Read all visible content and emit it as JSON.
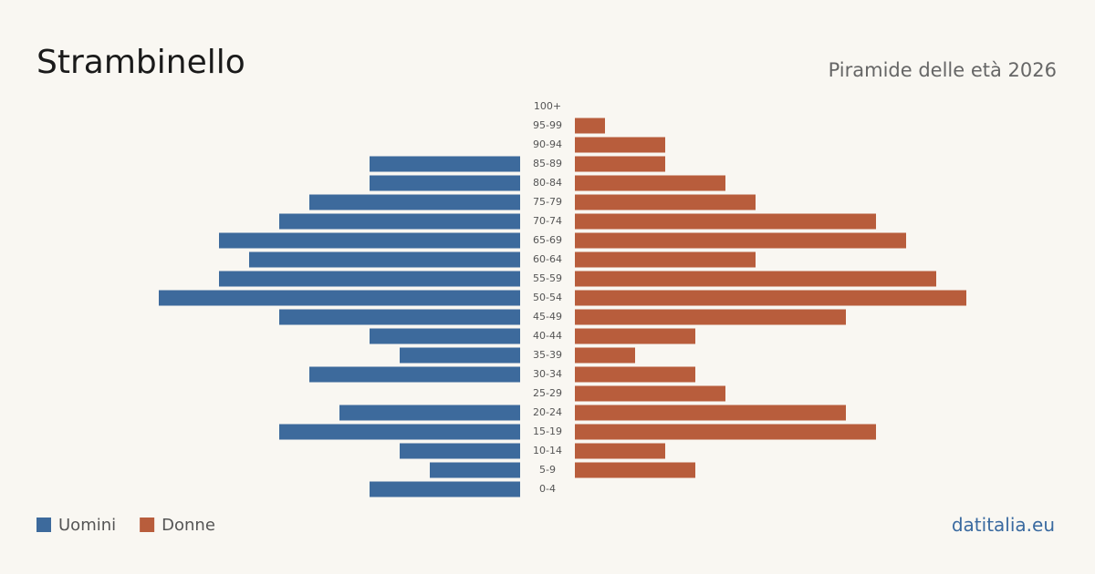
{
  "chart_data": {
    "type": "pyramid",
    "title": "Strambinello",
    "subtitle": "Piramide delle età 2026",
    "source": "datitalia.eu",
    "categories": [
      "100+",
      "95-99",
      "90-94",
      "85-89",
      "80-84",
      "75-79",
      "70-74",
      "65-69",
      "60-64",
      "55-59",
      "50-54",
      "45-49",
      "40-44",
      "35-39",
      "30-34",
      "25-29",
      "20-24",
      "15-19",
      "10-14",
      "5-9",
      "0-4"
    ],
    "series": [
      {
        "name": "Uomini",
        "color": "#3d6a9c",
        "values": [
          0,
          0,
          0,
          5,
          5,
          7,
          8,
          10,
          9,
          10,
          12,
          8,
          5,
          4,
          7,
          0,
          6,
          8,
          4,
          3,
          5
        ]
      },
      {
        "name": "Donne",
        "color": "#b85d3c",
        "values": [
          0,
          1,
          3,
          3,
          5,
          6,
          10,
          11,
          6,
          12,
          13,
          9,
          4,
          2,
          4,
          5,
          9,
          10,
          3,
          4,
          0
        ]
      }
    ]
  }
}
